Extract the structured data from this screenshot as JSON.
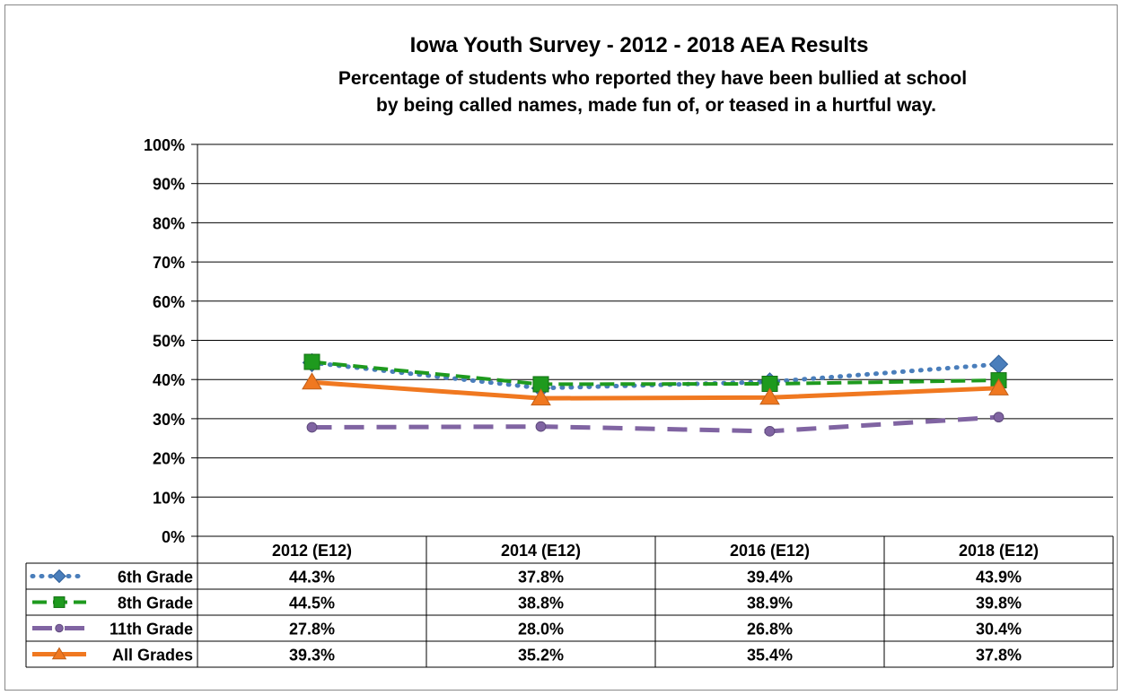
{
  "chart_data": {
    "type": "line",
    "title": "Iowa Youth Survey - 2012 - 2018 AEA Results",
    "subtitle_lines": [
      "Percentage of students who reported they have been bullied at school",
      "by being called names, made fun of, or teased in a hurtful way."
    ],
    "categories": [
      "2012 (E12)",
      "2014 (E12)",
      "2016 (E12)",
      "2018 (E12)"
    ],
    "ylim": [
      0,
      100
    ],
    "yticks": [
      "0%",
      "10%",
      "20%",
      "30%",
      "40%",
      "50%",
      "60%",
      "70%",
      "80%",
      "90%",
      "100%"
    ],
    "grid": true,
    "legend": "data-table",
    "series": [
      {
        "name": "6th Grade",
        "values": [
          44.3,
          37.8,
          39.4,
          43.9
        ],
        "labels": [
          "44.3%",
          "37.8%",
          "39.4%",
          "43.9%"
        ],
        "color": "#4a7ebb",
        "marker": "diamond",
        "line": "dotted"
      },
      {
        "name": "8th Grade",
        "values": [
          44.5,
          38.8,
          38.9,
          39.8
        ],
        "labels": [
          "44.5%",
          "38.8%",
          "38.9%",
          "39.8%"
        ],
        "color": "#1e9a1e",
        "marker": "square",
        "line": "dashed"
      },
      {
        "name": "11th Grade",
        "values": [
          27.8,
          28.0,
          26.8,
          30.4
        ],
        "labels": [
          "27.8%",
          "28.0%",
          "26.8%",
          "30.4%"
        ],
        "color": "#8064a2",
        "marker": "circle",
        "line": "longdash"
      },
      {
        "name": "All Grades",
        "values": [
          39.3,
          35.2,
          35.4,
          37.8
        ],
        "labels": [
          "39.3%",
          "35.2%",
          "35.4%",
          "37.8%"
        ],
        "color": "#f07820",
        "marker": "triangle",
        "line": "solid"
      }
    ]
  }
}
